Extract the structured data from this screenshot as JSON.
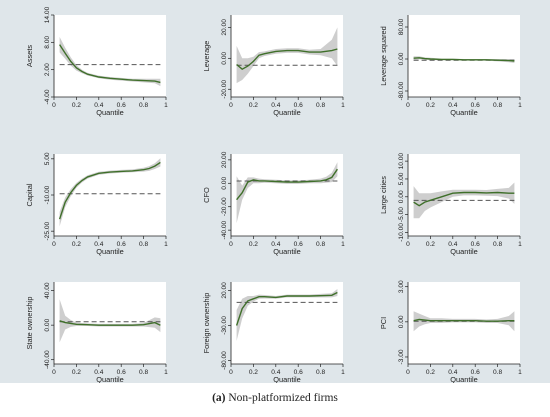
{
  "caption": {
    "label": "(a)",
    "text": " Non-platformized firms"
  },
  "colors": {
    "background": "#dfe6ea",
    "plot_background": "#ffffff",
    "band": "#c9c9c9",
    "estimate_line": "#3f6f2a",
    "ols_line": "#555555"
  },
  "chart_data": [
    {
      "type": "line",
      "ylabel": "Assets",
      "xlabel": "Quantile",
      "xticks": [
        "0",
        "0.2",
        "0.4",
        "0.6",
        "0.8",
        "1"
      ],
      "xlim": [
        0,
        1
      ],
      "yticks": [
        -4,
        2,
        8,
        14
      ],
      "yticklabels": [
        "-4.00",
        "2.00",
        "8.00",
        "14.00"
      ],
      "ylim": [
        -4,
        14
      ],
      "ols": 3.1,
      "series": [
        {
          "x": [
            0.05,
            0.1,
            0.15,
            0.2,
            0.25,
            0.3,
            0.4,
            0.5,
            0.6,
            0.7,
            0.8,
            0.9,
            0.95
          ],
          "y": [
            7.5,
            5.6,
            3.8,
            2.4,
            1.6,
            1.0,
            0.4,
            0.1,
            -0.1,
            -0.3,
            -0.4,
            -0.5,
            -0.8
          ],
          "lower": [
            5.8,
            4.4,
            2.9,
            1.8,
            1.2,
            0.7,
            0.1,
            -0.2,
            -0.4,
            -0.6,
            -0.8,
            -1.0,
            -1.6
          ],
          "upper": [
            9.2,
            6.8,
            4.7,
            3.0,
            2.0,
            1.3,
            0.7,
            0.4,
            0.2,
            0.0,
            0.0,
            0.0,
            0.0
          ]
        }
      ]
    },
    {
      "type": "line",
      "ylabel": "Leverage",
      "xlabel": "Quantile",
      "xticks": [
        "0",
        "0.2",
        "0.4",
        "0.6",
        "0.8",
        "1"
      ],
      "xlim": [
        0,
        1
      ],
      "yticks": [
        -20,
        0,
        20
      ],
      "yticklabels": [
        "-20.00",
        "0.00",
        "20.00"
      ],
      "ylim": [
        -25,
        28
      ],
      "ols": -4.5,
      "series": [
        {
          "x": [
            0.05,
            0.1,
            0.15,
            0.2,
            0.25,
            0.3,
            0.4,
            0.5,
            0.6,
            0.7,
            0.8,
            0.9,
            0.95
          ],
          "y": [
            -4,
            -7,
            -5,
            -2,
            2,
            3,
            4.5,
            5,
            5,
            4,
            4,
            5,
            6
          ],
          "lower": [
            -16,
            -14,
            -10,
            -5,
            0,
            1.5,
            3,
            3.5,
            3.5,
            2.5,
            2,
            0,
            -5
          ],
          "upper": [
            8,
            0,
            0,
            1,
            4,
            4.5,
            6,
            6.5,
            6.5,
            5.5,
            6,
            12,
            20
          ]
        }
      ]
    },
    {
      "type": "line",
      "ylabel": "Leverage squared",
      "xlabel": "Quantile",
      "xticks": [
        "0",
        "0.2",
        "0.4",
        "0.6",
        "0.8",
        "1"
      ],
      "xlim": [
        0,
        1
      ],
      "yticks": [
        -80,
        0,
        80
      ],
      "yticklabels": [
        "-80.00",
        "0.00",
        "80.00"
      ],
      "ylim": [
        -95,
        110
      ],
      "ols": -3,
      "series": [
        {
          "x": [
            0.05,
            0.1,
            0.15,
            0.2,
            0.3,
            0.4,
            0.5,
            0.6,
            0.7,
            0.8,
            0.9,
            0.95
          ],
          "y": [
            2,
            3,
            1,
            0,
            -1,
            -1,
            -2,
            -2,
            -2,
            -3,
            -4,
            -5
          ],
          "lower": [
            -3,
            -1,
            -2,
            -3,
            -3,
            -3,
            -4,
            -4,
            -4,
            -6,
            -8,
            -10
          ],
          "upper": [
            7,
            7,
            4,
            3,
            1,
            1,
            0,
            0,
            0,
            0,
            0,
            0
          ]
        }
      ]
    },
    {
      "type": "line",
      "ylabel": "Capital",
      "xlabel": "Quantile",
      "xticks": [
        "0",
        "0.2",
        "0.4",
        "0.6",
        "0.8",
        "1"
      ],
      "xlim": [
        0,
        1
      ],
      "yticks": [
        -25,
        -10,
        5
      ],
      "yticklabels": [
        "-25.00",
        "-10.00",
        "5.00"
      ],
      "ylim": [
        -27,
        7
      ],
      "ols": -9.5,
      "series": [
        {
          "x": [
            0.05,
            0.1,
            0.15,
            0.2,
            0.25,
            0.3,
            0.4,
            0.5,
            0.6,
            0.7,
            0.8,
            0.85,
            0.9,
            0.95
          ],
          "y": [
            -20,
            -13,
            -9,
            -6,
            -4,
            -2.5,
            -1,
            -0.5,
            -0.2,
            0,
            0.5,
            1,
            2,
            3.5
          ],
          "lower": [
            -23,
            -15,
            -10.5,
            -7,
            -4.8,
            -3.2,
            -1.6,
            -1.1,
            -0.8,
            -0.6,
            -0.3,
            0,
            0.8,
            1.8
          ],
          "upper": [
            -17,
            -11,
            -7.5,
            -5,
            -3.2,
            -1.8,
            -0.4,
            0.1,
            0.4,
            0.6,
            1.3,
            2,
            3.2,
            5.2
          ]
        }
      ]
    },
    {
      "type": "line",
      "ylabel": "CFO",
      "xlabel": "Quantile",
      "xticks": [
        "0",
        "0.2",
        "0.4",
        "0.6",
        "0.8",
        "1"
      ],
      "xlim": [
        0,
        1
      ],
      "yticks": [
        -40,
        -20,
        0,
        20
      ],
      "yticklabels": [
        "-40.00",
        "-20.00",
        "0.00",
        "20.00"
      ],
      "ylim": [
        -45,
        25
      ],
      "ols": 2,
      "series": [
        {
          "x": [
            0.05,
            0.1,
            0.15,
            0.2,
            0.25,
            0.3,
            0.4,
            0.5,
            0.6,
            0.7,
            0.8,
            0.85,
            0.9,
            0.95
          ],
          "y": [
            -14,
            -8,
            1,
            3,
            2,
            2,
            1.5,
            1,
            1,
            1.5,
            2,
            3,
            5,
            12
          ],
          "lower": [
            -34,
            -14,
            -4,
            0,
            0,
            0.5,
            0,
            -0.5,
            -0.5,
            0,
            0,
            0.5,
            1,
            6
          ],
          "upper": [
            6,
            -2,
            5,
            5,
            4,
            3.5,
            3,
            2.5,
            2.5,
            3,
            4,
            5.5,
            9,
            18
          ]
        }
      ]
    },
    {
      "type": "line",
      "ylabel": "Large cities",
      "xlabel": "Quantile",
      "xticks": [
        "0",
        "0.2",
        "0.4",
        "0.6",
        "0.8",
        "1"
      ],
      "xlim": [
        0,
        1
      ],
      "yticks": [
        -10,
        -5,
        0,
        5,
        10
      ],
      "yticklabels": [
        "-10.00",
        "-5.00",
        "0.00",
        "5.00",
        "10.00"
      ],
      "ylim": [
        -11,
        12
      ],
      "ols": -1,
      "series": [
        {
          "x": [
            0.05,
            0.1,
            0.15,
            0.2,
            0.3,
            0.4,
            0.5,
            0.6,
            0.7,
            0.8,
            0.9,
            0.95
          ],
          "y": [
            -1.5,
            -2.5,
            -1.5,
            -1,
            0,
            1,
            1.2,
            1.2,
            1.1,
            1.2,
            1.0,
            1.0
          ],
          "lower": [
            -6,
            -6,
            -4,
            -3,
            -1.5,
            0,
            0.4,
            0.4,
            0.3,
            0.2,
            -0.5,
            -2
          ],
          "upper": [
            3,
            1,
            1,
            1,
            1.5,
            2,
            2.0,
            2.0,
            1.9,
            2.2,
            2.5,
            4
          ]
        }
      ]
    },
    {
      "type": "line",
      "ylabel": "State ownership",
      "xlabel": "Quantile",
      "xticks": [
        "0",
        "0.2",
        "0.4",
        "0.6",
        "0.8",
        "1"
      ],
      "xlim": [
        0,
        1
      ],
      "yticks": [
        -40,
        0,
        40
      ],
      "yticklabels": [
        "-40.00",
        "0.00",
        "40.00"
      ],
      "ylim": [
        -45,
        50
      ],
      "ols": 4,
      "series": [
        {
          "x": [
            0.05,
            0.1,
            0.15,
            0.2,
            0.3,
            0.4,
            0.5,
            0.6,
            0.7,
            0.8,
            0.9,
            0.95
          ],
          "y": [
            5,
            3,
            2,
            1,
            0.5,
            0,
            0,
            0,
            0,
            0.5,
            3,
            0
          ],
          "lower": [
            -20,
            -5,
            -2,
            -1,
            -1,
            -1.5,
            -1.5,
            -1.5,
            -1.5,
            -1.5,
            -3,
            -8
          ],
          "upper": [
            30,
            11,
            6,
            3,
            2,
            1.5,
            1.5,
            1.5,
            1.5,
            2.5,
            9,
            8
          ]
        }
      ]
    },
    {
      "type": "line",
      "ylabel": "Foreign ownership",
      "xlabel": "Quantile",
      "xticks": [
        "0",
        "0.2",
        "0.4",
        "0.6",
        "0.8",
        "1"
      ],
      "xlim": [
        0,
        1
      ],
      "yticks": [
        -80,
        -30,
        20
      ],
      "yticklabels": [
        "-80.00",
        "-30.00",
        "20.00"
      ],
      "ylim": [
        -85,
        32
      ],
      "ols": 3,
      "series": [
        {
          "x": [
            0.05,
            0.1,
            0.15,
            0.2,
            0.25,
            0.3,
            0.4,
            0.5,
            0.6,
            0.7,
            0.8,
            0.9,
            0.95
          ],
          "y": [
            -30,
            -6,
            5,
            8,
            11,
            11,
            10,
            12,
            12,
            12,
            12.5,
            13,
            17
          ],
          "lower": [
            -52,
            -20,
            -2,
            4,
            8,
            8.5,
            8,
            10,
            10,
            10,
            10,
            10,
            12
          ],
          "upper": [
            -8,
            8,
            12,
            12,
            14,
            13.5,
            12,
            14,
            14,
            14,
            15,
            16,
            22
          ]
        }
      ]
    },
    {
      "type": "line",
      "ylabel": "PCI",
      "xlabel": "Quantile",
      "xticks": [
        "0",
        "0.2",
        "0.4",
        "0.6",
        "0.8",
        "1"
      ],
      "xlim": [
        0,
        1
      ],
      "yticks": [
        -3,
        0,
        3
      ],
      "yticklabels": [
        "-3.00",
        "0.00",
        "3.00"
      ],
      "ylim": [
        -3.6,
        3.4
      ],
      "ols": 0.05,
      "series": [
        {
          "x": [
            0.05,
            0.1,
            0.15,
            0.2,
            0.3,
            0.4,
            0.5,
            0.6,
            0.7,
            0.8,
            0.9,
            0.95
          ],
          "y": [
            0.1,
            0.2,
            0.15,
            0.1,
            0.1,
            0.1,
            0.1,
            0.1,
            0.05,
            0.05,
            0.1,
            0.1
          ],
          "lower": [
            -0.8,
            -0.4,
            -0.2,
            -0.1,
            -0.1,
            -0.05,
            -0.05,
            -0.05,
            -0.1,
            -0.1,
            -0.3,
            -0.8
          ],
          "upper": [
            0.9,
            0.7,
            0.5,
            0.3,
            0.3,
            0.25,
            0.25,
            0.25,
            0.2,
            0.25,
            0.5,
            0.9
          ]
        }
      ]
    }
  ]
}
